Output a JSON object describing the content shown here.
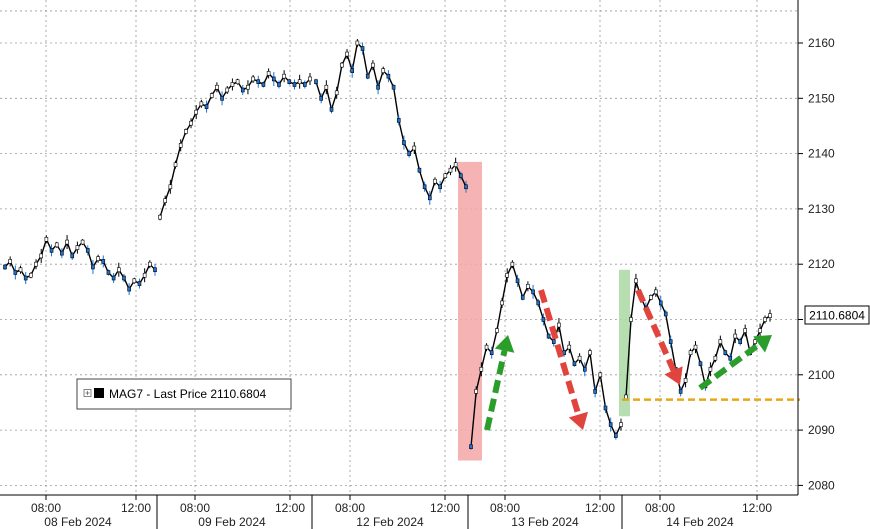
{
  "chart_data": {
    "type": "line",
    "title": "",
    "xlabel": "",
    "ylabel": "",
    "ylim": [
      2078,
      2168
    ],
    "grid": true,
    "legend": {
      "placement": "bottom-left",
      "text": "MAG7 - Last Price 2110.6804"
    },
    "last_price": 2110.6804,
    "last_price_label": "2110.6804",
    "y_ticks": [
      2080,
      2090,
      2100,
      2110,
      2120,
      2130,
      2140,
      2150,
      2160
    ],
    "y_tick_labels": [
      "2080",
      "2090",
      "2100",
      "2110",
      "2120",
      "2130",
      "2140",
      "2150",
      "2160"
    ],
    "days": [
      {
        "label": "08 Feb 2024",
        "ticks": [
          "08:00",
          "12:00"
        ]
      },
      {
        "label": "09 Feb 2024",
        "ticks": [
          "08:00",
          "12:00"
        ]
      },
      {
        "label": "12 Feb 2024",
        "ticks": [
          "08:00",
          "12:00"
        ]
      },
      {
        "label": "13 Feb 2024",
        "ticks": [
          "08:00",
          "12:00"
        ]
      },
      {
        "label": "14 Feb 2024",
        "ticks": [
          "08:00",
          "12:00"
        ]
      }
    ],
    "series": [
      {
        "values": [
          2119.5,
          2120.5,
          2118.5,
          2119,
          2117.5,
          2118,
          2120,
          2121.5,
          2124.5,
          2122.5,
          2123.5,
          2122,
          2124,
          2121.5,
          2123,
          2124,
          2122.5,
          2119.5,
          2121,
          2120.5,
          2118.5,
          2117.5,
          2119,
          2117.5,
          2115.5,
          2117,
          2116.5,
          2118,
          2120,
          2119,
          2128.5,
          2131.5,
          2134,
          2138,
          2141.5,
          2144,
          2145.5,
          2147.5,
          2149,
          2148.5,
          2150.5,
          2152,
          2150,
          2151.5,
          2152.5,
          2153,
          2151.5,
          2152,
          2153.5,
          2153,
          2152.5,
          2154.5,
          2153.5,
          2152.5,
          2154,
          2153,
          2152.5,
          2153,
          2152.5,
          2153.5,
          2153,
          2150,
          2152,
          2148,
          2151,
          2156,
          2158,
          2155,
          2160,
          2159,
          2154,
          2156,
          2152,
          2155,
          2154,
          2152,
          2146,
          2142,
          2140,
          2141,
          2137,
          2134,
          2132,
          2135,
          2134,
          2136,
          2137,
          2138,
          2136,
          2134,
          2087,
          2097,
          2101,
          2105,
          2104,
          2108,
          2113,
          2118,
          2120,
          2117,
          2114,
          2116,
          2115,
          2113,
          2110,
          2107,
          2106,
          2109,
          2104,
          2105,
          2102,
          2103,
          2101,
          2104,
          2097,
          2100,
          2094,
          2091,
          2089,
          2091,
          2096,
          2110,
          2117,
          2114,
          2112,
          2114,
          2115,
          2113,
          2111,
          2106,
          2101,
          2097,
          2099,
          2104,
          2105,
          2102,
          2098,
          2101,
          2103,
          2106,
          2104,
          2103,
          2107,
          2106,
          2108,
          2104,
          2106,
          2108,
          2110,
          2110.7
        ]
      }
    ],
    "highlight_regions": [
      {
        "color": "#f4a6a6",
        "y_range": [
          2084.5,
          2138.5
        ]
      },
      {
        "color": "#a9d8a2",
        "y_range": [
          2092.5,
          2119
        ]
      }
    ],
    "support_level": {
      "value": 2095.5,
      "color": "#e6a817"
    },
    "arrows": [
      {
        "color": "#2a9d2a",
        "direction": "up"
      },
      {
        "color": "#e0443c",
        "direction": "down"
      },
      {
        "color": "#e0443c",
        "direction": "down"
      },
      {
        "color": "#2a9d2a",
        "direction": "up"
      }
    ]
  }
}
